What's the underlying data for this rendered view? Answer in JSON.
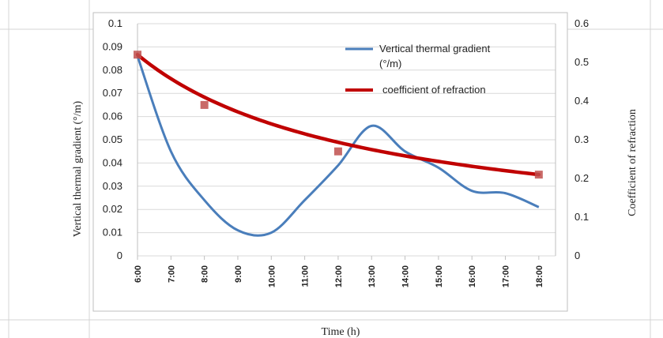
{
  "chart_data": {
    "type": "line",
    "title": "",
    "xlabel": "Time (h)",
    "ylabel_left": "Vertical thermal gradient (°/m)",
    "ylabel_right": "Coefficient of refraction",
    "categories": [
      "6:00",
      "7:00",
      "8:00",
      "9:00",
      "10:00",
      "11:00",
      "12:00",
      "13:00",
      "14:00",
      "15:00",
      "16:00",
      "17:00",
      "18:00"
    ],
    "left_axis": {
      "min": 0,
      "max": 0.1,
      "ticks": [
        "0",
        "0.01",
        "0.02",
        "0.03",
        "0.04",
        "0.05",
        "0.06",
        "0.07",
        "0.08",
        "0.09",
        "0.1"
      ]
    },
    "right_axis": {
      "min": 0,
      "max": 0.6,
      "ticks": [
        "0",
        "0.1",
        "0.2",
        "0.3",
        "0.4",
        "0.5",
        "0.6"
      ]
    },
    "grid": true,
    "legend_position": "top-right",
    "series": [
      {
        "name": "Vertical thermal gradient (°/m)",
        "legend_line1": "Vertical thermal gradient",
        "legend_line2": "(°/m)",
        "axis": "left",
        "color": "#4a7ebb",
        "x": [
          6,
          7,
          8,
          9,
          10,
          11,
          12,
          13,
          14,
          15,
          16,
          17,
          18
        ],
        "values": [
          0.086,
          0.045,
          0.024,
          0.011,
          0.01,
          0.024,
          0.039,
          0.056,
          0.045,
          0.038,
          0.028,
          0.027,
          0.021
        ]
      },
      {
        "name": "coefficient of refraction",
        "axis": "right",
        "color": "#c00000",
        "marker_color": "#c0504d",
        "x": [
          6,
          8,
          12,
          18
        ],
        "values": [
          0.52,
          0.39,
          0.27,
          0.21
        ]
      }
    ]
  }
}
